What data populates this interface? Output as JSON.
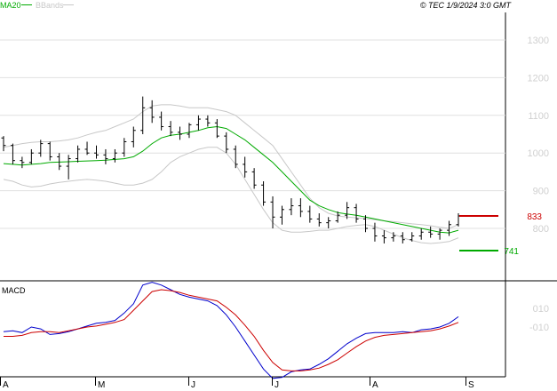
{
  "header": {
    "legend_ma": "MA20",
    "legend_bb": "BBands",
    "copyright": "© TEC 1/9/2024 3:0 GMT"
  },
  "colors": {
    "ma": "#00aa00",
    "bbands": "#c8c8c8",
    "price": "#000000",
    "macd": "#0000cc",
    "signal": "#cc0000",
    "resistance": "#cc0000",
    "support": "#00aa00",
    "grid": "#e0e0e0",
    "axis_text": "#d0d0d0"
  },
  "chart_data": [
    {
      "type": "ohlc",
      "panel": "price",
      "y_ticks": [
        "1300",
        "1200",
        "1100",
        "1000",
        "900",
        "800"
      ],
      "ylim": [
        700,
        1350
      ],
      "x_ticks": [
        "A",
        "M",
        "J",
        "J",
        "A",
        "S"
      ],
      "levels": [
        {
          "name": "833",
          "value": 833,
          "color": "#cc0000"
        },
        {
          "name": "741",
          "value": 741,
          "color": "#00aa00"
        }
      ],
      "series": [
        {
          "name": "MA20",
          "type": "line",
          "color": "#00aa00",
          "values": [
            972,
            970,
            968,
            970,
            972,
            975,
            976,
            977,
            978,
            979,
            980,
            981,
            983,
            985,
            990,
            1005,
            1025,
            1040,
            1047,
            1050,
            1055,
            1060,
            1067,
            1070,
            1065,
            1050,
            1035,
            1015,
            995,
            975,
            950,
            925,
            900,
            875,
            860,
            850,
            842,
            838,
            835,
            830,
            825,
            820,
            815,
            810,
            805,
            800,
            795,
            790,
            788,
            795
          ]
        },
        {
          "name": "BBand upper",
          "type": "line",
          "color": "#c8c8c8",
          "values": [
            1015,
            1020,
            1025,
            1028,
            1030,
            1030,
            1032,
            1035,
            1040,
            1048,
            1055,
            1060,
            1070,
            1080,
            1090,
            1110,
            1125,
            1128,
            1128,
            1125,
            1120,
            1120,
            1120,
            1115,
            1110,
            1100,
            1080,
            1060,
            1040,
            1020,
            985,
            950,
            915,
            880,
            855,
            840,
            833,
            830,
            828,
            826,
            823,
            820,
            818,
            815,
            812,
            810,
            807,
            803,
            800,
            810
          ]
        },
        {
          "name": "BBand lower",
          "type": "line",
          "color": "#c8c8c8",
          "values": [
            930,
            925,
            915,
            910,
            912,
            918,
            922,
            925,
            928,
            930,
            928,
            925,
            920,
            915,
            915,
            920,
            930,
            950,
            975,
            990,
            1000,
            1010,
            1015,
            1015,
            1000,
            970,
            930,
            890,
            850,
            815,
            795,
            790,
            790,
            792,
            795,
            795,
            800,
            805,
            808,
            810,
            805,
            795,
            785,
            775,
            768,
            762,
            760,
            762,
            765,
            775
          ]
        },
        {
          "name": "OHLC",
          "type": "ohlc",
          "color": "#000000",
          "ohlc": [
            [
              1040,
              1045,
              1005,
              1020
            ],
            [
              1020,
              1025,
              970,
              980
            ],
            [
              980,
              990,
              960,
              975
            ],
            [
              975,
              1010,
              970,
              1000
            ],
            [
              1000,
              1035,
              990,
              1025
            ],
            [
              1025,
              1030,
              980,
              990
            ],
            [
              990,
              1000,
              955,
              965
            ],
            [
              965,
              995,
              930,
              985
            ],
            [
              985,
              1020,
              975,
              1010
            ],
            [
              1010,
              1030,
              995,
              1000
            ],
            [
              1000,
              1020,
              985,
              995
            ],
            [
              995,
              1010,
              970,
              985
            ],
            [
              985,
              1010,
              975,
              1000
            ],
            [
              1000,
              1040,
              990,
              1030
            ],
            [
              1030,
              1070,
              1015,
              1060
            ],
            [
              1060,
              1150,
              1050,
              1120
            ],
            [
              1120,
              1140,
              1080,
              1095
            ],
            [
              1095,
              1110,
              1060,
              1070
            ],
            [
              1070,
              1085,
              1045,
              1055
            ],
            [
              1055,
              1070,
              1035,
              1050
            ],
            [
              1050,
              1080,
              1040,
              1075
            ],
            [
              1075,
              1100,
              1060,
              1090
            ],
            [
              1090,
              1100,
              1070,
              1080
            ],
            [
              1080,
              1090,
              1040,
              1045
            ],
            [
              1045,
              1055,
              1000,
              1010
            ],
            [
              1010,
              1020,
              960,
              970
            ],
            [
              970,
              990,
              935,
              950
            ],
            [
              950,
              960,
              905,
              915
            ],
            [
              915,
              925,
              860,
              870
            ],
            [
              870,
              885,
              800,
              830
            ],
            [
              830,
              860,
              810,
              850
            ],
            [
              850,
              880,
              835,
              860
            ],
            [
              860,
              880,
              830,
              845
            ],
            [
              845,
              860,
              815,
              825
            ],
            [
              825,
              840,
              805,
              815
            ],
            [
              815,
              830,
              800,
              820
            ],
            [
              820,
              845,
              815,
              835
            ],
            [
              835,
              870,
              825,
              855
            ],
            [
              855,
              865,
              815,
              825
            ],
            [
              825,
              835,
              790,
              800
            ],
            [
              800,
              815,
              765,
              780
            ],
            [
              780,
              795,
              760,
              775
            ],
            [
              775,
              790,
              765,
              780
            ],
            [
              780,
              790,
              760,
              770
            ],
            [
              770,
              790,
              765,
              780
            ],
            [
              780,
              800,
              770,
              790
            ],
            [
              790,
              805,
              775,
              785
            ],
            [
              785,
              800,
              770,
              795
            ],
            [
              795,
              820,
              780,
              810
            ],
            [
              810,
              840,
              805,
              833
            ]
          ]
        }
      ]
    },
    {
      "type": "line",
      "panel": "macd",
      "title": "MACD",
      "y_ticks": [
        "010",
        "-010"
      ],
      "ylim": [
        -75,
        50
      ],
      "series": [
        {
          "name": "MACD",
          "color": "#0000cc",
          "values": [
            -15,
            -14,
            -16,
            -10,
            -12,
            -18,
            -17,
            -15,
            -12,
            -9,
            -6,
            -5,
            -3,
            5,
            15,
            35,
            38,
            35,
            30,
            25,
            22,
            20,
            18,
            13,
            3,
            -10,
            -25,
            -40,
            -55,
            -65,
            -64,
            -58,
            -56,
            -55,
            -50,
            -44,
            -36,
            -28,
            -22,
            -17,
            -16,
            -16,
            -16,
            -15,
            -16,
            -13,
            -12,
            -10,
            -6,
            1
          ]
        },
        {
          "name": "Signal",
          "color": "#cc0000",
          "values": [
            -20,
            -20,
            -19,
            -16,
            -15,
            -15,
            -16,
            -14,
            -12,
            -10,
            -9,
            -7,
            -5,
            -2,
            8,
            18,
            28,
            30,
            29,
            27,
            24,
            22,
            20,
            18,
            11,
            3,
            -8,
            -20,
            -35,
            -48,
            -56,
            -57,
            -57,
            -56,
            -54,
            -50,
            -45,
            -38,
            -31,
            -25,
            -21,
            -19,
            -18,
            -17,
            -16,
            -15,
            -14,
            -12,
            -9,
            -5
          ]
        }
      ]
    }
  ]
}
